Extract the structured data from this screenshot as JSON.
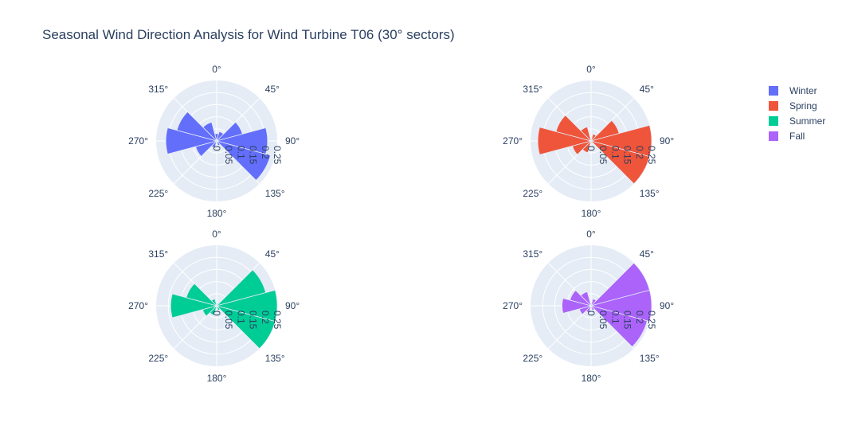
{
  "title": "Seasonal Wind Direction Analysis for Wind Turbine T06 (30° sectors)",
  "chart_data": {
    "type": "barpolar",
    "sector_width_deg": 30,
    "directions": [
      0,
      30,
      60,
      90,
      120,
      150,
      180,
      210,
      240,
      270,
      300,
      330
    ],
    "angular_tick_labels": [
      "0°",
      "45°",
      "90°",
      "135°",
      "180°",
      "225°",
      "270°",
      "315°"
    ],
    "radial_range": [
      0,
      0.25
    ],
    "radial_ticks": [
      0,
      0.05,
      0.1,
      0.15,
      0.2,
      0.25
    ],
    "radial_tick_labels": [
      "0",
      "0.05",
      "0.1",
      "0.15",
      "0.2",
      "0.25"
    ],
    "grid": true,
    "legend_position": "top-right",
    "series": [
      {
        "name": "Winter",
        "color": "#636efa",
        "values": [
          0.03,
          0.04,
          0.11,
          0.21,
          0.23,
          0.02,
          0.01,
          0.03,
          0.09,
          0.21,
          0.17,
          0.08
        ]
      },
      {
        "name": "Spring",
        "color": "#ef553b",
        "values": [
          0.01,
          0.03,
          0.12,
          0.25,
          0.26,
          0.01,
          0.01,
          0.05,
          0.08,
          0.22,
          0.15,
          0.06
        ]
      },
      {
        "name": "Summer",
        "color": "#00cc96",
        "values": [
          0.01,
          0.01,
          0.21,
          0.27,
          0.25,
          0.02,
          0.01,
          0.04,
          0.06,
          0.19,
          0.13,
          0.03
        ]
      },
      {
        "name": "Fall",
        "color": "#ab63fa",
        "values": [
          0.01,
          0.03,
          0.27,
          0.27,
          0.24,
          0.02,
          0.01,
          0.03,
          0.05,
          0.12,
          0.09,
          0.06
        ]
      }
    ]
  }
}
